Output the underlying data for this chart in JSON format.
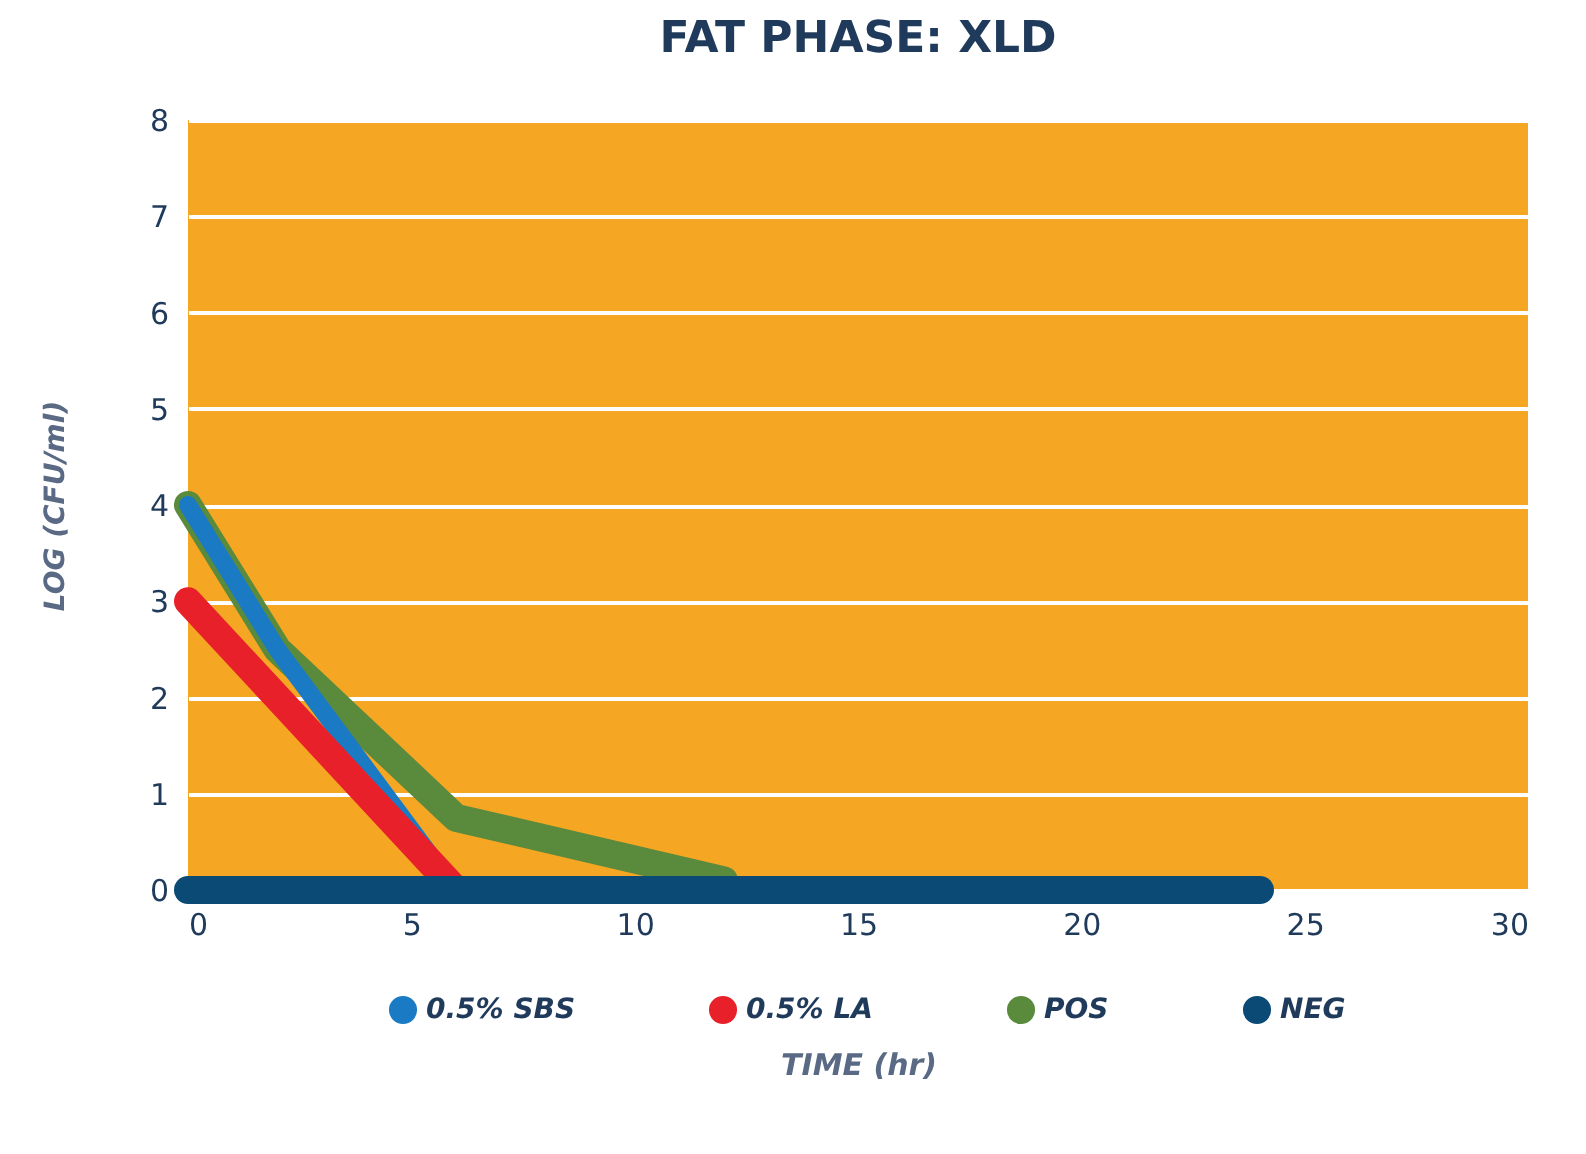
{
  "chart_data": {
    "type": "line",
    "title": "FAT PHASE: XLD",
    "xlabel": "TIME (hr)",
    "ylabel": "LOG (CFU/ml)",
    "series": [
      {
        "name": "0.5% SBS",
        "color": "#1a7bc4",
        "x": [
          0,
          2,
          6
        ],
        "values": [
          4,
          2.5,
          0
        ]
      },
      {
        "name": "0.5% LA",
        "color": "#e8202a",
        "x": [
          0,
          2,
          6
        ],
        "values": [
          3,
          2,
          0
        ]
      },
      {
        "name": "POS",
        "color": "#5a8a3c",
        "x": [
          0,
          2,
          6,
          12
        ],
        "values": [
          4,
          2.5,
          0.75,
          0.1
        ]
      },
      {
        "name": "NEG",
        "color": "#0b4a75",
        "x": [
          0,
          2,
          6,
          12,
          24
        ],
        "values": [
          0,
          0,
          0,
          0,
          0
        ]
      }
    ],
    "xlim": [
      0,
      30
    ],
    "xticks": [
      0,
      5,
      10,
      15,
      20,
      25,
      30
    ],
    "ylim": [
      0,
      8
    ],
    "yticks": [
      0,
      1,
      2,
      3,
      4,
      5,
      6,
      7,
      8
    ],
    "grid": "y",
    "legend": "bottom",
    "line_style": "solid"
  }
}
